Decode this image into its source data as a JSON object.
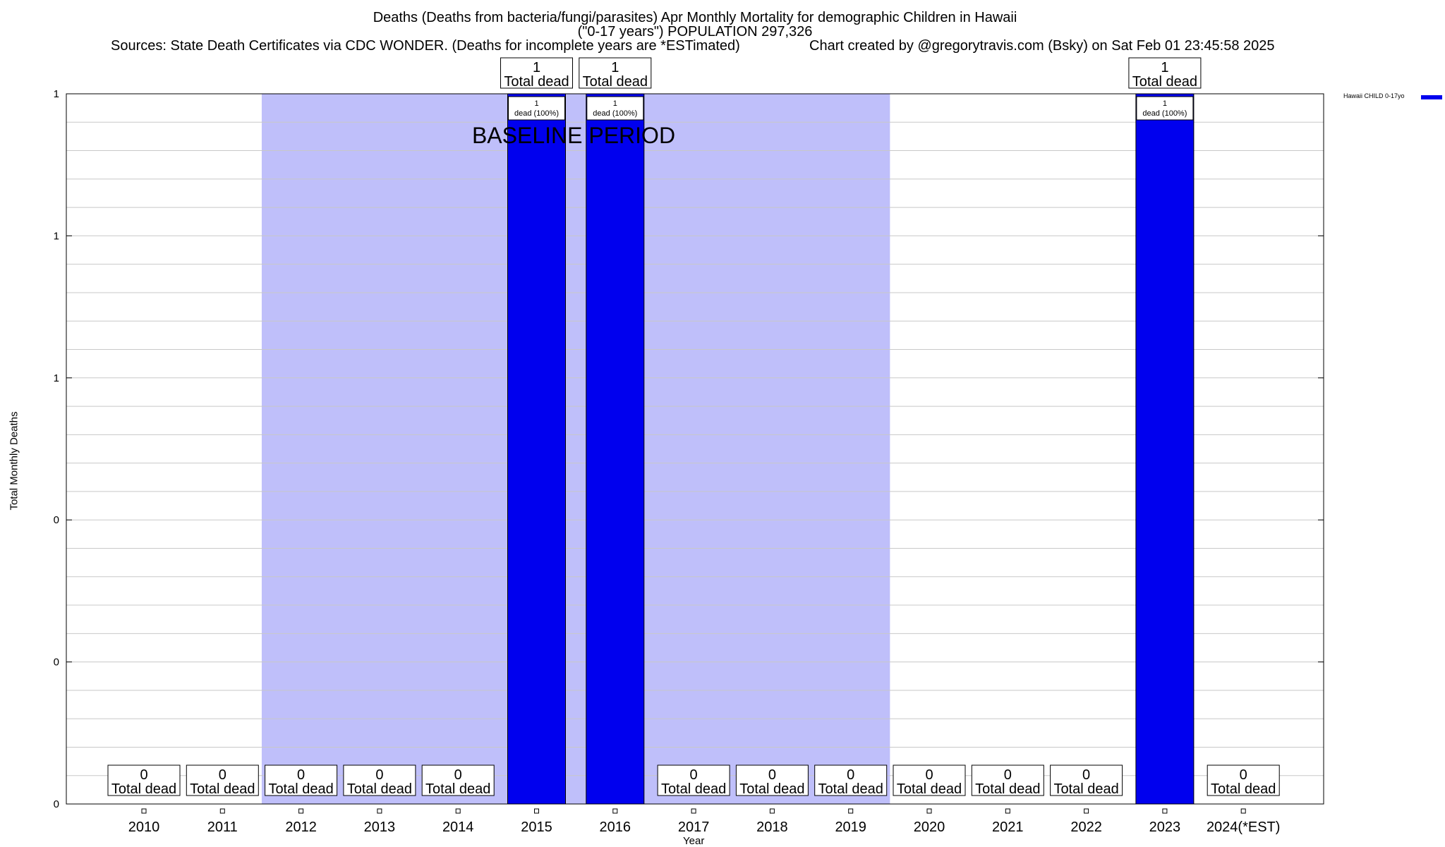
{
  "chart_data": {
    "type": "bar",
    "title": "Deaths (Deaths from bacteria/fungi/parasites) Apr Monthly Mortality for demographic Children in Hawaii",
    "subtitle": "(\"0-17 years\") POPULATION 297,326",
    "sources": "Sources: State Death Certificates via CDC WONDER. (Deaths for incomplete years are *ESTimated)",
    "credit": "Chart created by @gregorytravis.com (Bsky) on Sat Feb 01 23:45:58 2025",
    "xlabel": "Year",
    "ylabel": "Total Monthly Deaths",
    "ylim": [
      0,
      1
    ],
    "y_tick_labels": [
      "0",
      "0",
      "0",
      "1",
      "1",
      "1"
    ],
    "categories": [
      "2010",
      "2011",
      "2012",
      "2013",
      "2014",
      "2015",
      "2016",
      "2017",
      "2018",
      "2019",
      "2020",
      "2021",
      "2022",
      "2023",
      "2024(*EST)"
    ],
    "series": [
      {
        "name": "Hawaii CHILD 0-17yo",
        "color": "#0000ee",
        "values": [
          0,
          0,
          0,
          0,
          0,
          1,
          1,
          0,
          0,
          0,
          0,
          0,
          0,
          1,
          0
        ]
      }
    ],
    "total_label_suffix": "Total dead",
    "pct_label": "dead (100%)",
    "baseline": {
      "label": "BASELINE PERIOD",
      "start": "2012",
      "end": "2019",
      "color": "#bfbffa"
    },
    "grid": true,
    "legend_position": "top-right"
  }
}
